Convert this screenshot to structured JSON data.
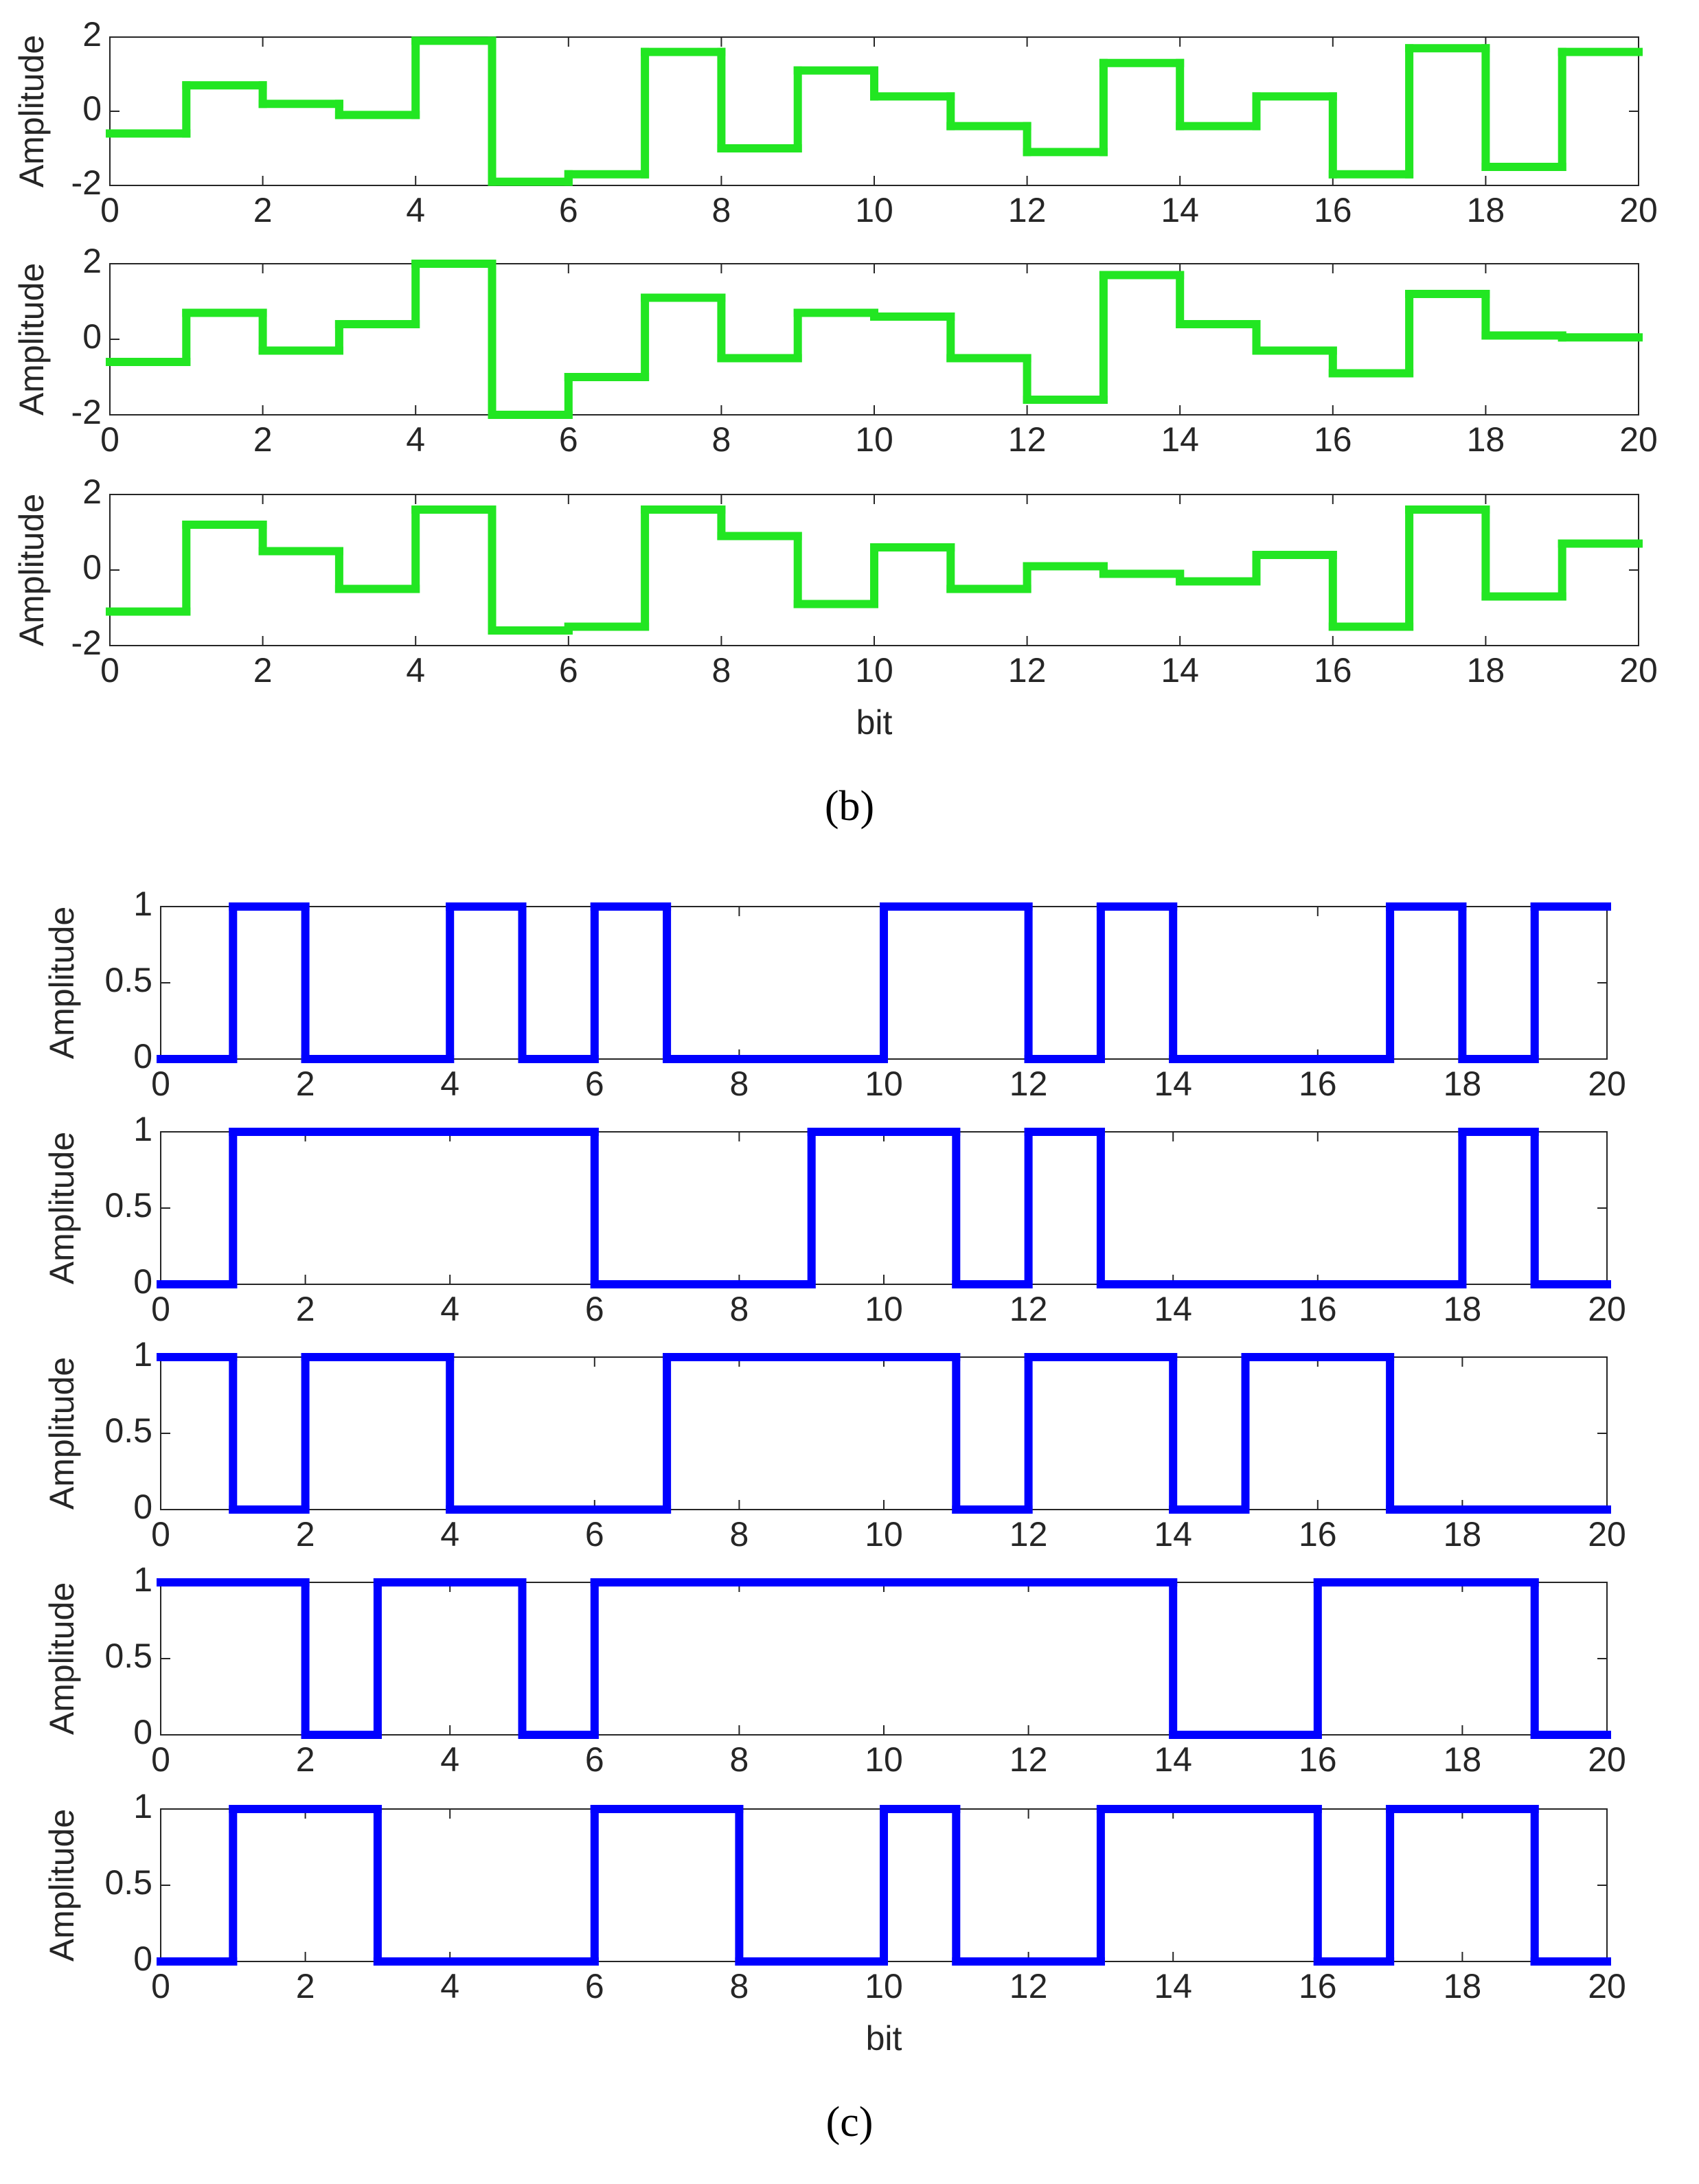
{
  "chart_data": [
    {
      "type": "step",
      "ylabel": "Amplitude",
      "color": "#22e622",
      "x": [
        0,
        1,
        2,
        3,
        4,
        5,
        6,
        7,
        8,
        9,
        10,
        11,
        12,
        13,
        14,
        15,
        16,
        17,
        18,
        19
      ],
      "values": [
        -0.6,
        0.7,
        0.2,
        -0.1,
        1.9,
        -1.9,
        -1.7,
        1.6,
        -1.0,
        1.1,
        0.4,
        -0.4,
        -1.1,
        1.3,
        -0.4,
        0.4,
        -1.7,
        1.7,
        -1.5,
        1.6
      ],
      "xlim": [
        0,
        20
      ],
      "xticks": [
        0,
        2,
        4,
        6,
        8,
        10,
        12,
        14,
        16,
        18,
        20
      ],
      "ylim": [
        -2,
        2
      ],
      "yticks": [
        -2,
        0,
        2
      ]
    },
    {
      "type": "step",
      "ylabel": "Amplitude",
      "color": "#22e622",
      "x": [
        0,
        1,
        2,
        3,
        4,
        5,
        6,
        7,
        8,
        9,
        10,
        11,
        12,
        13,
        14,
        15,
        16,
        17,
        18,
        19
      ],
      "values": [
        -0.6,
        0.7,
        -0.3,
        0.4,
        2.0,
        -2.0,
        -1.0,
        1.1,
        -0.5,
        0.7,
        0.6,
        -0.5,
        -1.6,
        1.7,
        0.4,
        -0.3,
        -0.9,
        1.2,
        0.1,
        0.05
      ],
      "xlim": [
        0,
        20
      ],
      "xticks": [
        0,
        2,
        4,
        6,
        8,
        10,
        12,
        14,
        16,
        18,
        20
      ],
      "ylim": [
        -2,
        2
      ],
      "yticks": [
        -2,
        0,
        2
      ]
    },
    {
      "type": "step",
      "ylabel": "Amplitude",
      "xlabel": "bit",
      "caption": "(b)",
      "color": "#22e622",
      "x": [
        0,
        1,
        2,
        3,
        4,
        5,
        6,
        7,
        8,
        9,
        10,
        11,
        12,
        13,
        14,
        15,
        16,
        17,
        18,
        19
      ],
      "values": [
        -1.1,
        1.2,
        0.5,
        -0.5,
        1.6,
        -1.6,
        -1.5,
        1.6,
        0.9,
        -0.9,
        0.6,
        -0.5,
        0.1,
        -0.1,
        -0.3,
        0.4,
        -1.5,
        1.6,
        -0.7,
        0.7
      ],
      "xlim": [
        0,
        20
      ],
      "xticks": [
        0,
        2,
        4,
        6,
        8,
        10,
        12,
        14,
        16,
        18,
        20
      ],
      "ylim": [
        -2,
        2
      ],
      "yticks": [
        -2,
        0,
        2
      ]
    },
    {
      "type": "step",
      "ylabel": "Amplitude",
      "color": "#0000ff",
      "x": [
        0,
        1,
        2,
        3,
        4,
        5,
        6,
        7,
        8,
        9,
        10,
        11,
        12,
        13,
        14,
        15,
        16,
        17,
        18,
        19
      ],
      "values": [
        0,
        1,
        0,
        0,
        1,
        0,
        1,
        0,
        0,
        0,
        1,
        1,
        0,
        1,
        0,
        0,
        0,
        1,
        0,
        1
      ],
      "xlim": [
        0,
        20
      ],
      "xticks": [
        0,
        2,
        4,
        6,
        8,
        10,
        12,
        14,
        16,
        18,
        20
      ],
      "ylim": [
        0,
        1
      ],
      "yticks": [
        0,
        0.5,
        1
      ]
    },
    {
      "type": "step",
      "ylabel": "Amplitude",
      "color": "#0000ff",
      "x": [
        0,
        1,
        2,
        3,
        4,
        5,
        6,
        7,
        8,
        9,
        10,
        11,
        12,
        13,
        14,
        15,
        16,
        17,
        18,
        19
      ],
      "values": [
        0,
        1,
        1,
        1,
        1,
        1,
        0,
        0,
        0,
        1,
        1,
        0,
        1,
        0,
        0,
        0,
        0,
        0,
        1,
        0
      ],
      "xlim": [
        0,
        20
      ],
      "xticks": [
        0,
        2,
        4,
        6,
        8,
        10,
        12,
        14,
        16,
        18,
        20
      ],
      "ylim": [
        0,
        1
      ],
      "yticks": [
        0,
        0.5,
        1
      ]
    },
    {
      "type": "step",
      "ylabel": "Amplitude",
      "color": "#0000ff",
      "x": [
        0,
        1,
        2,
        3,
        4,
        5,
        6,
        7,
        8,
        9,
        10,
        11,
        12,
        13,
        14,
        15,
        16,
        17,
        18,
        19
      ],
      "values": [
        1,
        0,
        1,
        1,
        0,
        0,
        0,
        1,
        1,
        1,
        1,
        0,
        1,
        1,
        0,
        1,
        1,
        0,
        0,
        0
      ],
      "xlim": [
        0,
        20
      ],
      "xticks": [
        0,
        2,
        4,
        6,
        8,
        10,
        12,
        14,
        16,
        18,
        20
      ],
      "ylim": [
        0,
        1
      ],
      "yticks": [
        0,
        0.5,
        1
      ]
    },
    {
      "type": "step",
      "ylabel": "Amplitude",
      "color": "#0000ff",
      "x": [
        0,
        1,
        2,
        3,
        4,
        5,
        6,
        7,
        8,
        9,
        10,
        11,
        12,
        13,
        14,
        15,
        16,
        17,
        18,
        19
      ],
      "values": [
        1,
        1,
        0,
        1,
        1,
        0,
        1,
        1,
        1,
        1,
        1,
        1,
        1,
        1,
        0,
        0,
        1,
        1,
        1,
        0
      ],
      "xlim": [
        0,
        20
      ],
      "xticks": [
        0,
        2,
        4,
        6,
        8,
        10,
        12,
        14,
        16,
        18,
        20
      ],
      "ylim": [
        0,
        1
      ],
      "yticks": [
        0,
        0.5,
        1
      ]
    },
    {
      "type": "step",
      "ylabel": "Amplitude",
      "xlabel": "bit",
      "caption": "(c)",
      "color": "#0000ff",
      "x": [
        0,
        1,
        2,
        3,
        4,
        5,
        6,
        7,
        8,
        9,
        10,
        11,
        12,
        13,
        14,
        15,
        16,
        17,
        18,
        19
      ],
      "values": [
        0,
        1,
        1,
        0,
        0,
        0,
        1,
        1,
        0,
        0,
        1,
        0,
        0,
        1,
        1,
        1,
        0,
        1,
        1,
        0
      ],
      "xlim": [
        0,
        20
      ],
      "xticks": [
        0,
        2,
        4,
        6,
        8,
        10,
        12,
        14,
        16,
        18,
        20
      ],
      "ylim": [
        0,
        1
      ],
      "yticks": [
        0,
        0.5,
        1
      ]
    }
  ]
}
